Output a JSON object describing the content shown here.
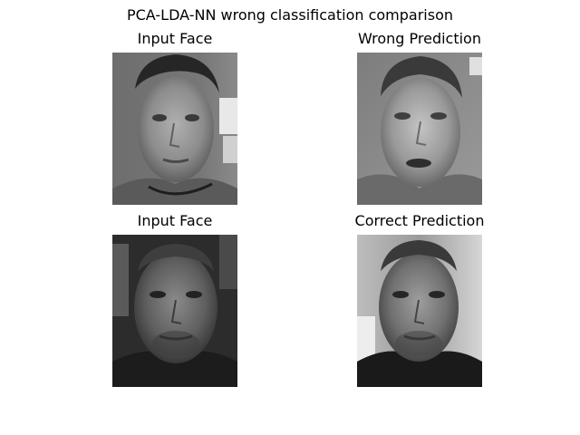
{
  "figure": {
    "title": "PCA-LDA-NN wrong classification comparison"
  },
  "panels": [
    {
      "key": "input1",
      "title": "Input Face",
      "image": "grayscale face photo: young man, dark hair, light background patch on right"
    },
    {
      "key": "wrong",
      "title": "Wrong Prediction",
      "image": "grayscale face photo: man with short hair, mouth slightly open"
    },
    {
      "key": "input2",
      "title": "Input Face",
      "image": "grayscale face photo: man with short hair and stubble, dark background"
    },
    {
      "key": "correct",
      "title": "Correct Prediction",
      "image": "grayscale face photo: same man with short hair and stubble, lighter background"
    }
  ],
  "colors": {
    "background": "#ffffff"
  }
}
